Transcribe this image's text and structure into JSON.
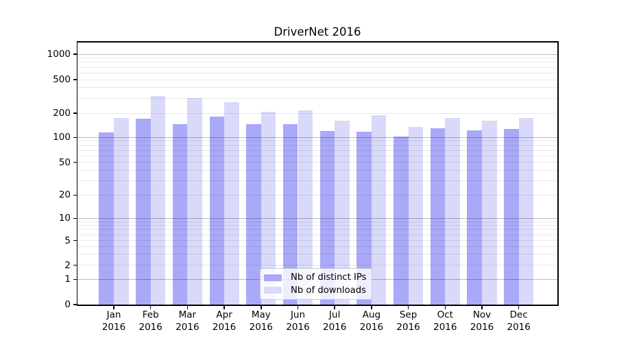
{
  "chart_data": {
    "type": "bar",
    "title": "DriverNet 2016",
    "year": "2016",
    "months": [
      "Jan",
      "Feb",
      "Mar",
      "Apr",
      "May",
      "Jun",
      "Jul",
      "Aug",
      "Sep",
      "Oct",
      "Nov",
      "Dec"
    ],
    "categories": [
      "Jan 2016",
      "Feb 2016",
      "Mar 2016",
      "Apr 2016",
      "May 2016",
      "Jun 2016",
      "Jul 2016",
      "Aug 2016",
      "Sep 2016",
      "Oct 2016",
      "Nov 2016",
      "Dec 2016"
    ],
    "series": [
      {
        "name": "Nb of distinct IPs",
        "color": "#a9a9f8",
        "values": [
          115,
          172,
          147,
          180,
          146,
          146,
          121,
          117,
          103,
          129,
          123,
          128
        ]
      },
      {
        "name": "Nb of downloads",
        "color": "#d9d9fa",
        "values": [
          175,
          318,
          303,
          270,
          206,
          215,
          161,
          188,
          136,
          174,
          162,
          175
        ]
      }
    ],
    "yscale": "symlog",
    "ylim": [
      0,
      1400
    ],
    "y_tick_labels": [
      0,
      1,
      2,
      5,
      10,
      20,
      50,
      100,
      200,
      500,
      1000
    ],
    "grid": true,
    "grid_major_values": [
      1,
      10,
      100,
      1000
    ],
    "grid_minor_values": [
      2,
      3,
      4,
      5,
      6,
      7,
      8,
      9,
      20,
      30,
      40,
      50,
      60,
      70,
      80,
      90,
      200,
      300,
      400,
      500,
      600,
      700,
      800,
      900
    ],
    "legend_position": "lower center",
    "scale_anchors": [
      [
        0,
        0
      ],
      [
        1,
        0.0959
      ],
      [
        2,
        0.1498
      ],
      [
        5,
        0.2439
      ],
      [
        10,
        0.3286
      ],
      [
        20,
        0.4175
      ],
      [
        50,
        0.542
      ],
      [
        100,
        0.6371
      ],
      [
        200,
        0.7294
      ],
      [
        500,
        0.8575
      ],
      [
        1000,
        0.9542
      ]
    ]
  },
  "colors": {
    "ips_bar": "#a9a9f8",
    "downloads_bar": "#d9d9fa",
    "grid_major": "#bababa",
    "grid_minor": "#e8e8e8",
    "axis": "#000000",
    "legend_border": "#cccccc",
    "background": "#ffffff"
  }
}
